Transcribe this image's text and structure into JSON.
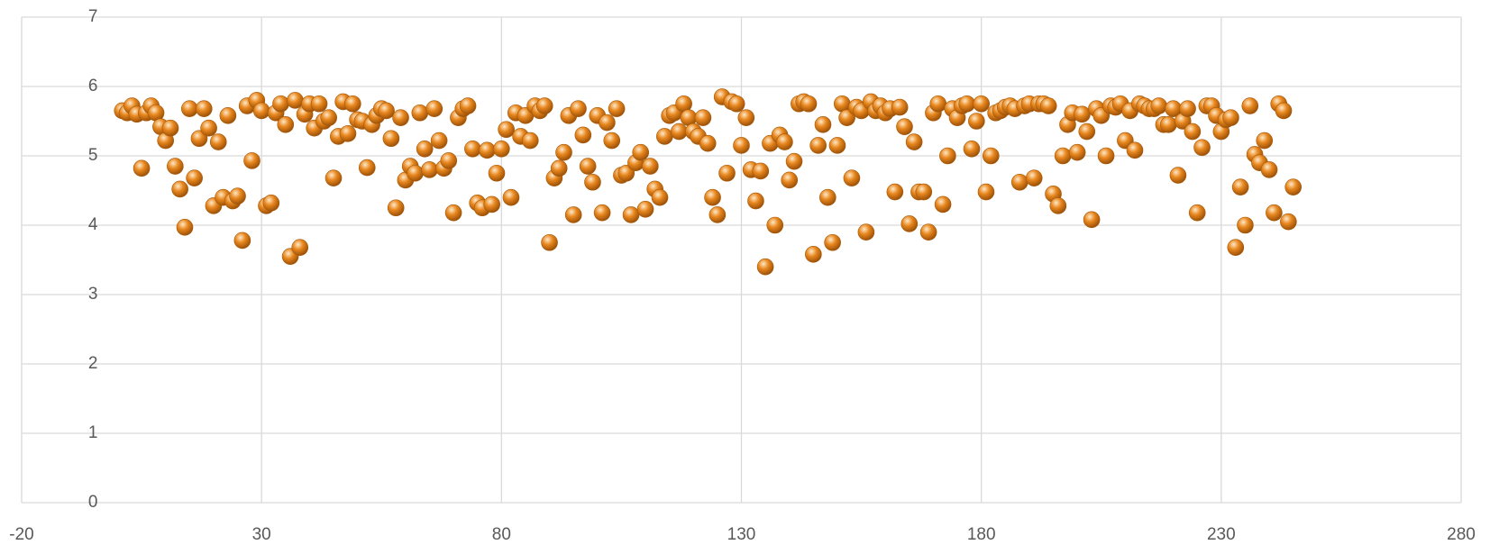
{
  "chart_data": {
    "type": "scatter",
    "color": "#e8871e",
    "grid": true,
    "xlim": [
      -20,
      280
    ],
    "xticks": [
      -20,
      30,
      80,
      130,
      180,
      230,
      280
    ],
    "ylim": [
      0,
      7
    ],
    "yticks": [
      0,
      1,
      2,
      3,
      4,
      5,
      6,
      7
    ],
    "x": [
      1,
      2,
      3,
      4,
      5,
      6,
      7,
      8,
      9,
      10,
      11,
      12,
      13,
      14,
      15,
      16,
      17,
      18,
      19,
      20,
      21,
      22,
      23,
      24,
      25,
      26,
      27,
      28,
      29,
      30,
      31,
      32,
      33,
      34,
      35,
      36,
      37,
      38,
      39,
      40,
      41,
      42,
      43,
      44,
      45,
      46,
      47,
      48,
      49,
      50,
      51,
      52,
      53,
      54,
      55,
      56,
      57,
      58,
      59,
      60,
      61,
      62,
      63,
      64,
      65,
      66,
      67,
      68,
      69,
      70,
      71,
      72,
      73,
      74,
      75,
      76,
      77,
      78,
      79,
      80,
      81,
      82,
      83,
      84,
      85,
      86,
      87,
      88,
      89,
      90,
      91,
      92,
      93,
      94,
      95,
      96,
      97,
      98,
      99,
      100,
      101,
      102,
      103,
      104,
      105,
      106,
      107,
      108,
      109,
      110,
      111,
      112,
      113,
      114,
      115,
      116,
      117,
      118,
      119,
      120,
      121,
      122,
      123,
      124,
      125,
      126,
      127,
      128,
      129,
      130,
      131,
      132,
      133,
      134,
      135,
      136,
      137,
      138,
      139,
      140,
      141,
      142,
      143,
      144,
      145,
      146,
      147,
      148,
      149,
      150,
      151,
      152,
      153,
      154,
      155,
      156,
      157,
      158,
      159,
      160,
      161,
      162,
      163,
      164,
      165,
      166,
      167,
      168,
      169,
      170,
      171,
      172,
      173,
      174,
      175,
      176,
      177,
      178,
      179,
      180,
      181,
      182,
      183,
      184,
      185,
      186,
      187,
      188,
      189,
      190,
      191,
      192,
      193,
      194,
      195,
      196,
      197,
      198,
      199,
      200,
      201,
      202,
      203,
      204,
      205,
      206,
      207,
      208,
      209,
      210,
      211,
      212,
      213,
      214,
      215,
      216,
      217,
      218,
      219,
      220,
      221,
      222,
      223,
      224,
      225,
      226,
      227,
      228,
      229,
      230,
      231,
      232,
      233,
      234,
      235,
      236,
      237,
      238,
      239,
      240,
      241,
      242,
      243,
      244,
      245
    ],
    "values": [
      5.65,
      5.62,
      5.72,
      5.6,
      4.82,
      5.62,
      5.72,
      5.62,
      5.42,
      5.22,
      5.4,
      4.85,
      4.52,
      3.97,
      5.68,
      4.68,
      5.25,
      5.68,
      5.4,
      4.28,
      5.2,
      4.4,
      5.58,
      4.35,
      4.42,
      3.78,
      5.72,
      4.93,
      5.8,
      5.65,
      4.28,
      4.32,
      5.62,
      5.75,
      5.45,
      3.55,
      5.8,
      3.68,
      5.6,
      5.75,
      5.4,
      5.75,
      5.5,
      5.55,
      4.68,
      5.28,
      5.78,
      5.32,
      5.75,
      5.52,
      5.5,
      4.83,
      5.45,
      5.58,
      5.68,
      5.65,
      5.25,
      4.25,
      5.55,
      4.65,
      4.85,
      4.75,
      5.62,
      5.1,
      4.8,
      5.68,
      5.22,
      4.82,
      4.93,
      4.18,
      5.55,
      5.68,
      5.72,
      5.1,
      4.32,
      4.25,
      5.08,
      4.3,
      4.75,
      5.1,
      5.38,
      4.4,
      5.62,
      5.28,
      5.58,
      5.22,
      5.72,
      5.65,
      5.72,
      3.75,
      4.68,
      4.82,
      5.05,
      5.58,
      4.15,
      5.68,
      5.3,
      4.85,
      4.62,
      5.58,
      4.18,
      5.48,
      5.22,
      5.68,
      4.72,
      4.75,
      4.15,
      4.9,
      5.05,
      4.23,
      4.85,
      4.52,
      4.4,
      5.28,
      5.58,
      5.62,
      5.35,
      5.75,
      5.55,
      5.35,
      5.28,
      5.55,
      5.18,
      4.4,
      4.15,
      5.85,
      4.75,
      5.78,
      5.75,
      5.15,
      5.55,
      4.8,
      4.35,
      4.78,
      3.4,
      5.18,
      4.0,
      5.3,
      5.2,
      4.65,
      4.92,
      5.75,
      5.78,
      5.75,
      3.58,
      5.15,
      5.45,
      4.4,
      3.75,
      5.15,
      5.75,
      5.55,
      4.68,
      5.7,
      5.65,
      3.9,
      5.78,
      5.65,
      5.72,
      5.62,
      5.68,
      4.48,
      5.7,
      5.42,
      4.02,
      5.2,
      4.48,
      4.48,
      3.9,
      5.62,
      5.75,
      4.3,
      5.0,
      5.68,
      5.55,
      5.72,
      5.75,
      5.1,
      5.5,
      5.75,
      4.48,
      5.0,
      5.62,
      5.65,
      5.7,
      5.72,
      5.68,
      4.62,
      5.72,
      5.75,
      4.68,
      5.75,
      5.75,
      5.72,
      4.45,
      4.28,
      5.0,
      5.45,
      5.62,
      5.05,
      5.6,
      5.35,
      4.08,
      5.68,
      5.58,
      5.0,
      5.72,
      5.7,
      5.75,
      5.22,
      5.65,
      5.08,
      5.75,
      5.72,
      5.68,
      5.68,
      5.72,
      5.45,
      5.45,
      5.68,
      4.72,
      5.5,
      5.68,
      5.35,
      4.18,
      5.12,
      5.72,
      5.72,
      5.58,
      5.35,
      5.52,
      5.55,
      3.68,
      4.55,
      4.0,
      5.72,
      5.02,
      4.9,
      5.22,
      4.8,
      4.18,
      5.75,
      5.65,
      4.05,
      4.55
    ]
  }
}
